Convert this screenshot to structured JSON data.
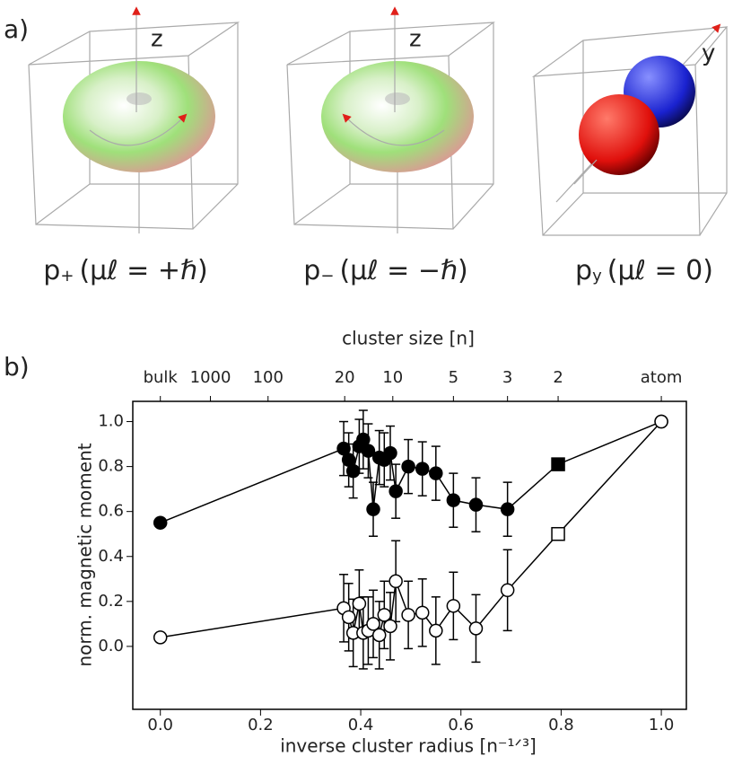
{
  "panel_a": {
    "label": "a)",
    "orbitals": [
      {
        "axis": "z",
        "p": "p",
        "sub": "+",
        "rest": "(μℓ = +ℏ)"
      },
      {
        "axis": "z",
        "p": "p",
        "sub": "−",
        "rest": "(μℓ = −ℏ)"
      },
      {
        "axis": "y",
        "p": "p",
        "sub": "y",
        "rest": "(μℓ = 0)"
      }
    ]
  },
  "panel_b_label": "b)",
  "chart_data": {
    "type": "line",
    "xlabel": "inverse cluster radius [n⁻¹ᐟ³]",
    "ylabel": "norm. magnetic moment",
    "top_axis_label": "cluster size [n]",
    "xlim": [
      -0.055,
      1.05
    ],
    "ylim": [
      -0.28,
      1.09
    ],
    "xticks": [
      {
        "value": 0,
        "label": "0.0"
      },
      {
        "value": 0.2,
        "label": "0.2"
      },
      {
        "value": 0.4,
        "label": "0.4"
      },
      {
        "value": 0.6,
        "label": "0.6"
      },
      {
        "value": 0.8,
        "label": "0.8"
      },
      {
        "value": 1,
        "label": "1.0"
      }
    ],
    "yticks": [
      {
        "value": 0,
        "label": "0.0"
      },
      {
        "value": 0.2,
        "label": "0.2"
      },
      {
        "value": 0.4,
        "label": "0.4"
      },
      {
        "value": 0.6,
        "label": "0.6"
      },
      {
        "value": 0.8,
        "label": "0.8"
      },
      {
        "value": 1,
        "label": "1.0"
      }
    ],
    "top_ticks": [
      {
        "value": 0,
        "label": "bulk"
      },
      {
        "value": 0.1,
        "label": "1000"
      },
      {
        "value": 0.215,
        "label": "100"
      },
      {
        "value": 0.368,
        "label": "20"
      },
      {
        "value": 0.464,
        "label": "10"
      },
      {
        "value": 0.585,
        "label": "5"
      },
      {
        "value": 0.693,
        "label": "3"
      },
      {
        "value": 0.794,
        "label": "2"
      },
      {
        "value": 1,
        "label": "atom"
      }
    ],
    "x": [
      0,
      0.366,
      0.376,
      0.385,
      0.397,
      0.405,
      0.415,
      0.425,
      0.437,
      0.447,
      0.459,
      0.47,
      0.495,
      0.523,
      0.55,
      0.585,
      0.63,
      0.693,
      0.794,
      1
    ],
    "series": [
      {
        "color": "#000000",
        "marker_fill": "#000000",
        "values": [
          0.55,
          0.88,
          0.83,
          0.78,
          0.89,
          0.92,
          0.87,
          0.61,
          0.84,
          0.83,
          0.86,
          0.69,
          0.8,
          0.79,
          0.77,
          0.65,
          0.63,
          0.61,
          0.81,
          1
        ],
        "errors": [
          null,
          0.12,
          0.12,
          0.12,
          0.12,
          0.13,
          0.12,
          0.12,
          0.12,
          0.12,
          0.12,
          0.12,
          0.12,
          0.12,
          0.12,
          0.12,
          0.12,
          0.12,
          null,
          null
        ],
        "markers": [
          "circle",
          "circle",
          "circle",
          "circle",
          "circle",
          "circle",
          "circle",
          "circle",
          "circle",
          "circle",
          "circle",
          "circle",
          "circle",
          "circle",
          "circle",
          "circle",
          "circle",
          "circle",
          "square",
          "circle"
        ]
      },
      {
        "color": "#000000",
        "marker_fill": "#ffffff",
        "values": [
          0.04,
          0.17,
          0.13,
          0.06,
          0.19,
          0.06,
          0.07,
          0.1,
          0.05,
          0.14,
          0.09,
          0.29,
          0.14,
          0.15,
          0.07,
          0.18,
          0.08,
          0.25,
          0.5,
          1
        ],
        "errors": [
          null,
          0.15,
          0.15,
          0.15,
          0.15,
          0.16,
          0.15,
          0.15,
          0.15,
          0.15,
          0.15,
          0.18,
          0.15,
          0.15,
          0.15,
          0.15,
          0.15,
          0.18,
          null,
          null
        ],
        "markers": [
          "circle",
          "circle",
          "circle",
          "circle",
          "circle",
          "circle",
          "circle",
          "circle",
          "circle",
          "circle",
          "circle",
          "circle",
          "circle",
          "circle",
          "circle",
          "circle",
          "circle",
          "circle",
          "square",
          "circle"
        ]
      }
    ]
  }
}
